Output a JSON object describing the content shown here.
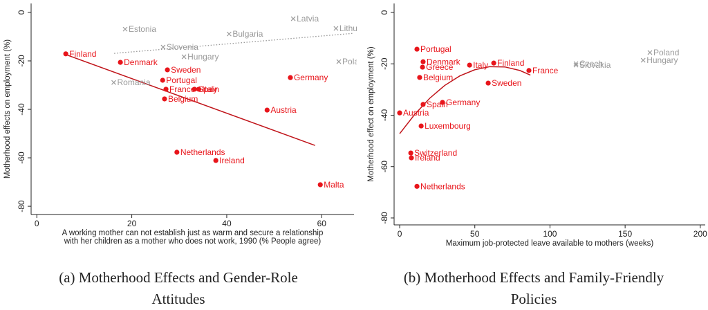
{
  "chart_data": [
    {
      "type": "scatter",
      "xlabel": [
        "A working mother can not establish just as warm and secure a relationship",
        "with her children as a mother who does not work, 1990 (% People agree)"
      ],
      "ylabel": "Motherhood effects on employment (%)",
      "caption": "(a) Motherhood Effects and Gender-Role Attitudes",
      "xlim": [
        -1.2,
        66.8
      ],
      "xticks": [
        0,
        20,
        40,
        60
      ],
      "ylim": [
        3.7,
        -83.4
      ],
      "yticks": [
        0,
        -20,
        -40,
        -60,
        -80
      ],
      "series": [
        {
          "color": "#e8151b",
          "marker": "dot",
          "labels": [
            "Finland",
            "Denmark",
            "Sweden",
            "Portugal",
            "France",
            "Spain",
            "Italy",
            "Belgium",
            "Germany",
            "Austria",
            "Netherlands",
            "Ireland",
            "Malta"
          ],
          "x": [
            6.1,
            17.6,
            27.5,
            26.5,
            27.2,
            33.2,
            34.1,
            26.9,
            53.4,
            48.5,
            29.5,
            37.7,
            59.7
          ],
          "values": [
            -17.1,
            -20.6,
            -23.7,
            -28,
            -31.7,
            -31.7,
            -31.7,
            -35.7,
            -26.9,
            -40.3,
            -57.7,
            -61.1,
            -71.1
          ]
        },
        {
          "color": "#9a9a9a",
          "marker": "cross",
          "labels": [
            "Estonia",
            "Latvia",
            "Lithuania",
            "Bulgaria",
            "Slovenia",
            "Hungary",
            "Poland",
            "Romania"
          ],
          "x": [
            18.6,
            54,
            63,
            40.5,
            26.6,
            31,
            63.6,
            16.2
          ],
          "values": [
            -6.9,
            -2.6,
            -6.6,
            -8.9,
            -14.3,
            -18.3,
            -20.3,
            -28.9
          ]
        }
      ],
      "fits": [
        {
          "color": "#c0141a",
          "style": "solid",
          "x": [
            6,
            58.6
          ],
          "values": [
            -17.3,
            -54.9
          ]
        },
        {
          "color": "#9a9a9a",
          "style": "dotted",
          "x": [
            16.3,
            66.8
          ],
          "values": [
            -16.9,
            -8.6
          ]
        }
      ]
    },
    {
      "type": "scatter",
      "xlabel": [
        "Maximum job-protected leave available to mothers (weeks)"
      ],
      "ylabel": "Motherhood effect on employment (%)",
      "caption": "(b) Motherhood Effects and Family-Friendly Policies",
      "xlim": [
        -3.7,
        203.3
      ],
      "xticks": [
        0,
        50,
        100,
        150,
        200
      ],
      "ylim": [
        3.5,
        -82.7
      ],
      "yticks": [
        0,
        -20,
        -40,
        -60,
        -80
      ],
      "series": [
        {
          "color": "#e8151b",
          "marker": "dot",
          "labels": [
            "Portugal",
            "Denmark",
            "Greece",
            "Italy",
            "Finland",
            "France",
            "Belgium",
            "Sweden",
            "Spain",
            "Germany",
            "Austria",
            "Luxembourg",
            "Switzerland",
            "Ireland",
            "Netherlands"
          ],
          "x": [
            11.5,
            15.6,
            15.2,
            46.5,
            62.6,
            86,
            13.3,
            58.9,
            15.6,
            28.5,
            0,
            14.3,
            7.4,
            7.8,
            11.5
          ],
          "values": [
            -14.3,
            -19.2,
            -21.3,
            -20.5,
            -19.7,
            -22.6,
            -25.3,
            -27.5,
            -35.8,
            -35,
            -39.1,
            -44.2,
            -54.7,
            -56.6,
            -67.7
          ]
        },
        {
          "color": "#9a9a9a",
          "marker": "cross",
          "labels": [
            "Czech",
            "Slovakia",
            "Poland",
            "Hungary"
          ],
          "x": [
            117.3,
            117.3,
            166.5,
            162
          ],
          "values": [
            -19.9,
            -20.5,
            -15.6,
            -18.6
          ]
        }
      ],
      "fits": [
        {
          "color": "#c0141a",
          "style": "solid",
          "x": [
            0,
            10,
            20,
            30,
            40,
            50,
            60,
            70,
            80,
            87
          ],
          "values": [
            -47.2,
            -39.7,
            -33.4,
            -28.4,
            -24.7,
            -22.3,
            -21.1,
            -21.2,
            -22.6,
            -24.4
          ]
        }
      ]
    }
  ]
}
